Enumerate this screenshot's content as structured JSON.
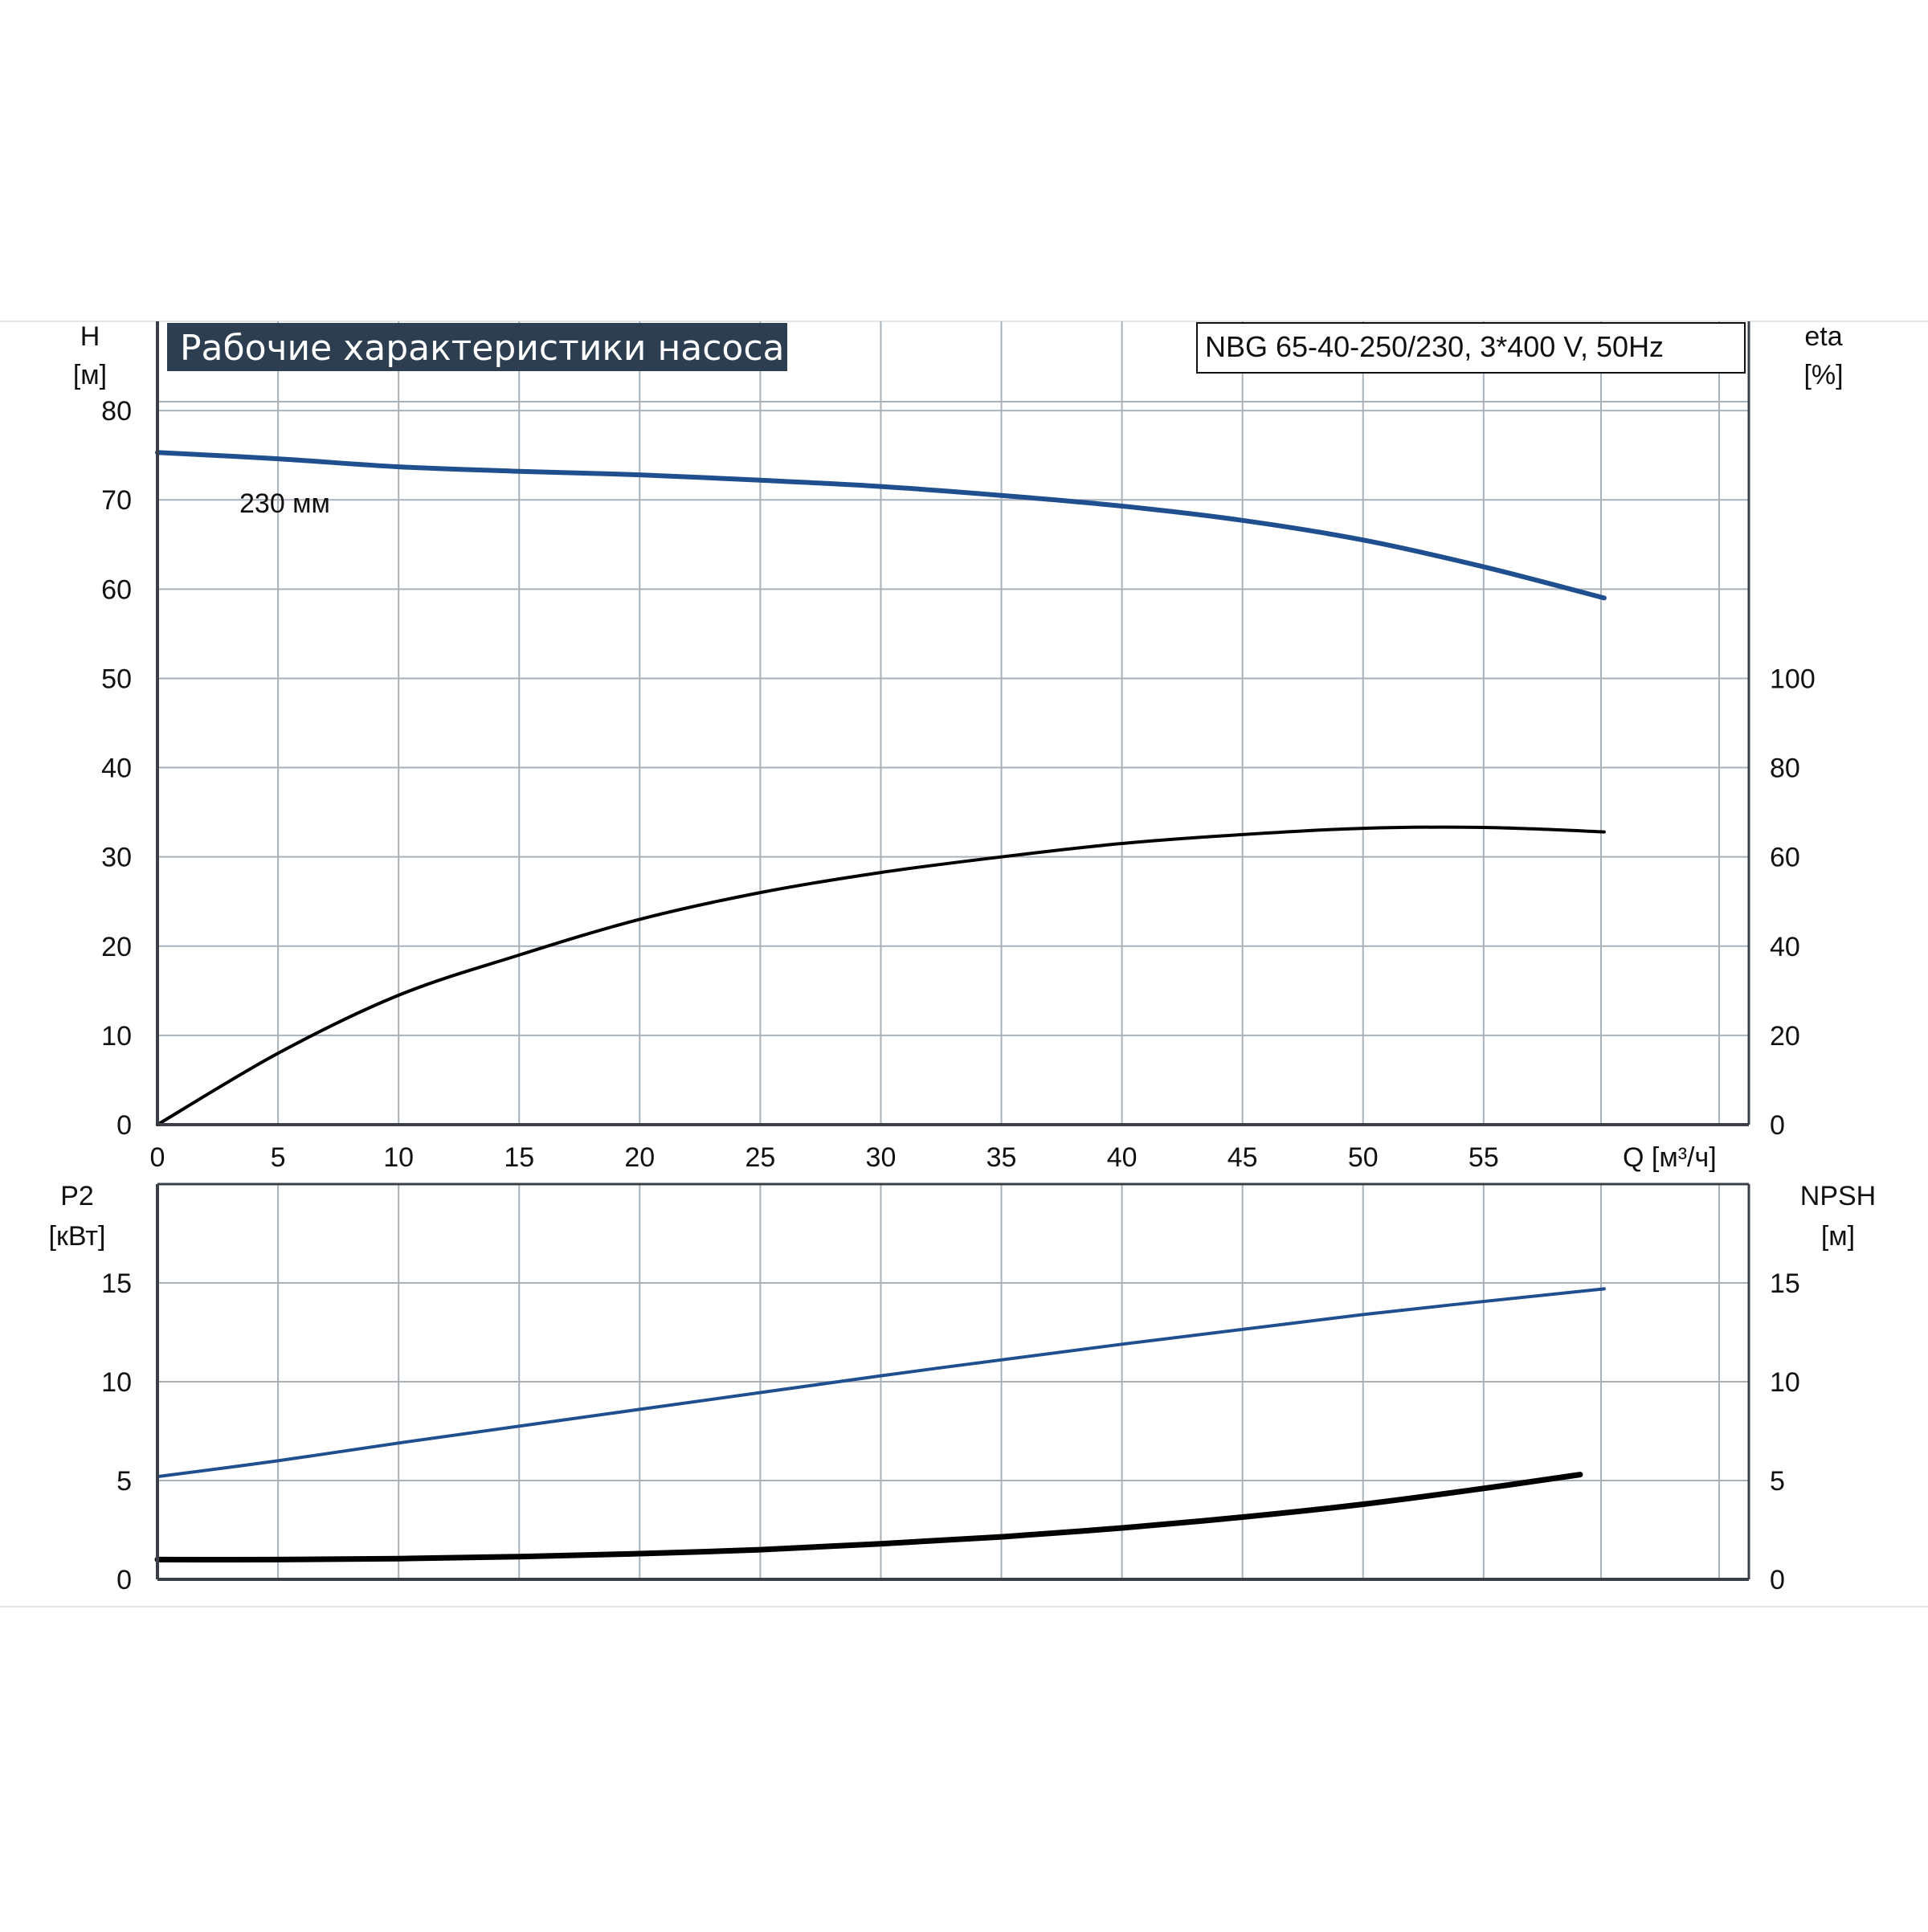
{
  "header": {
    "title": "Рабочие характеристики насоса",
    "model": "NBG 65-40-250/230, 3*400 V, 50Hz"
  },
  "colors": {
    "grid": "#a9b1b8",
    "frame": "#3a3f45",
    "title_bg": "#2d3e50",
    "curve_blue": "#1f4f8f",
    "curve_black": "#000000"
  },
  "chart_data": [
    {
      "type": "line",
      "panel": "top",
      "x_axis": {
        "label": "Q [м³/ч]",
        "ticks": [
          0,
          5,
          10,
          15,
          20,
          25,
          30,
          35,
          40,
          45,
          50,
          55
        ],
        "xlim": [
          0,
          66
        ]
      },
      "y_left": {
        "label_line1": "H",
        "label_line2": "[м]",
        "ticks": [
          0,
          10,
          20,
          30,
          40,
          50,
          60,
          70,
          80
        ],
        "ylim": [
          0,
          90
        ]
      },
      "y_right": {
        "label_line1": "eta",
        "label_line2": "[%]",
        "ticks": [
          0,
          20,
          40,
          60,
          80,
          100
        ],
        "ylim": [
          0,
          180
        ]
      },
      "grid": true,
      "annotations": [
        {
          "text": "230 мм"
        }
      ],
      "series": [
        {
          "axis": "left",
          "color": "blue",
          "x": [
            0,
            5,
            10,
            15,
            20,
            25,
            30,
            35,
            40,
            45,
            50,
            55,
            60
          ],
          "y": [
            75.3,
            74.6,
            73.7,
            73.2,
            72.8,
            72.2,
            71.5,
            70.5,
            69.3,
            67.7,
            65.5,
            62.5,
            59.0
          ]
        },
        {
          "axis": "right",
          "color": "black",
          "x": [
            0,
            5,
            10,
            15,
            20,
            25,
            30,
            35,
            40,
            45,
            50,
            55,
            60
          ],
          "y": [
            0,
            16,
            29,
            38,
            46,
            52,
            56.5,
            60,
            63,
            65,
            66.4,
            66.6,
            65.6
          ]
        }
      ]
    },
    {
      "type": "line",
      "panel": "bottom",
      "x_axis": {
        "xlim": [
          0,
          66
        ]
      },
      "y_left": {
        "label_line1": "P2",
        "label_line2": "[кВт]",
        "ticks": [
          0,
          5,
          10,
          15
        ],
        "ylim": [
          0,
          20
        ]
      },
      "y_right": {
        "label_line1": "NPSH",
        "label_line2": "[м]",
        "ticks": [
          0,
          5,
          10,
          15
        ],
        "ylim": [
          0,
          20
        ]
      },
      "grid": true,
      "series": [
        {
          "axis": "left",
          "color": "blue",
          "x": [
            0,
            5,
            10,
            20,
            30,
            40,
            50,
            60
          ],
          "y": [
            5.2,
            6.0,
            6.9,
            8.6,
            10.3,
            11.9,
            13.4,
            14.7
          ]
        },
        {
          "axis": "right",
          "color": "black",
          "x": [
            0,
            5,
            10,
            15,
            20,
            25,
            30,
            35,
            40,
            45,
            50,
            55,
            59
          ],
          "y": [
            1.0,
            1.0,
            1.05,
            1.15,
            1.3,
            1.5,
            1.8,
            2.15,
            2.6,
            3.15,
            3.8,
            4.6,
            5.3
          ]
        }
      ]
    }
  ]
}
